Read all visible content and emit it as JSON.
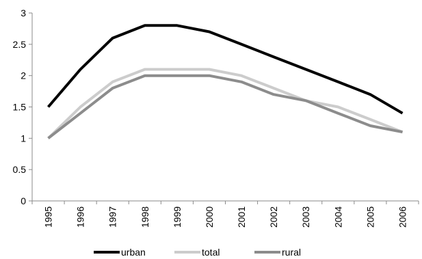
{
  "chart_data": {
    "type": "line",
    "x": [
      "1995",
      "1996",
      "1997",
      "1998",
      "1999",
      "2000",
      "2001",
      "2002",
      "2003",
      "2004",
      "2005",
      "2006"
    ],
    "ylim": [
      0,
      3
    ],
    "yticks": [
      0,
      0.5,
      1,
      1.5,
      2,
      2.5,
      3
    ],
    "ytick_labels": [
      "0",
      "0.5",
      "1",
      "1.5",
      "2",
      "2.5",
      "3"
    ],
    "grid": "none",
    "legend_position": "bottom",
    "series": [
      {
        "name": "urban",
        "color": "#000000",
        "values": [
          1.5,
          2.1,
          2.6,
          2.8,
          2.8,
          2.7,
          2.5,
          2.3,
          2.1,
          1.9,
          1.7,
          1.4
        ]
      },
      {
        "name": "total",
        "color": "#cccccc",
        "values": [
          1.0,
          1.5,
          1.9,
          2.1,
          2.1,
          2.1,
          2.0,
          1.8,
          1.6,
          1.5,
          1.3,
          1.1
        ]
      },
      {
        "name": "rural",
        "color": "#8c8c8c",
        "values": [
          1.0,
          1.4,
          1.8,
          2.0,
          2.0,
          2.0,
          1.9,
          1.7,
          1.6,
          1.4,
          1.2,
          1.1
        ]
      }
    ]
  }
}
